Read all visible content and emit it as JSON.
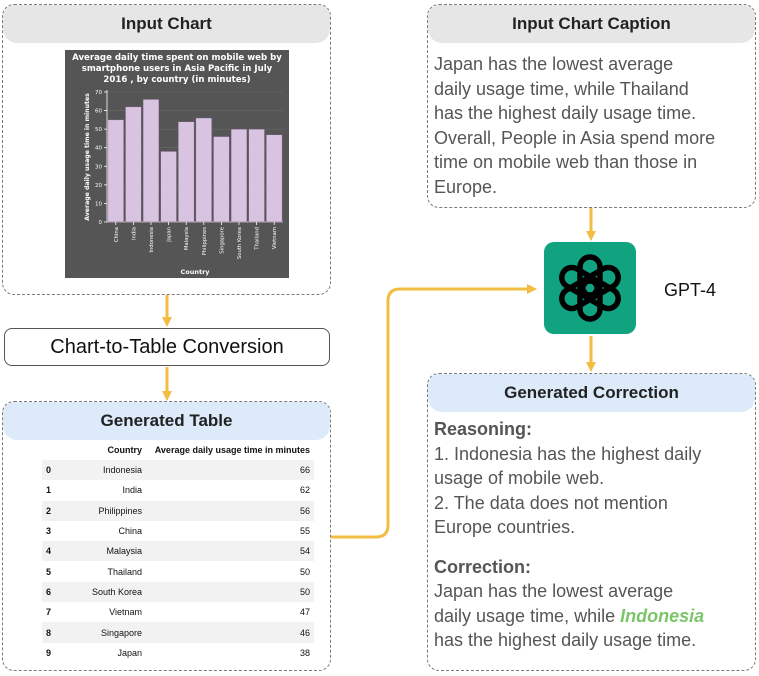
{
  "input_chart": {
    "title": "Input Chart"
  },
  "chart_data": {
    "type": "bar",
    "title": "Average daily time spent on mobile web by smartphone users in Asia Pacific in July 2016 , by country (in minutes)",
    "title_lines": [
      "Average daily time spent on mobile web by",
      "smartphone users in Asia Pacific in July",
      "2016 , by country (in minutes)"
    ],
    "xlabel": "Country",
    "ylabel": "Average daily usage time in minutes",
    "categories": [
      "China",
      "India",
      "Indonesia",
      "Japan",
      "Malaysia",
      "Philippines",
      "Singapore",
      "South Korea",
      "Thailand",
      "Vietnam"
    ],
    "values": [
      55,
      62,
      66,
      38,
      54,
      56,
      46,
      50,
      50,
      47
    ],
    "ylim": [
      0,
      70
    ],
    "yticks": [
      0,
      10,
      20,
      30,
      40,
      50,
      60,
      70
    ],
    "bar_color": "#d8c3e0",
    "background": "#555555"
  },
  "conversion": {
    "label": "Chart-to-Table Conversion"
  },
  "generated_table": {
    "title": "Generated Table",
    "headers": [
      "",
      "Country",
      "Average daily usage time in minutes"
    ],
    "rows": [
      [
        "0",
        "Indonesia",
        "66"
      ],
      [
        "1",
        "India",
        "62"
      ],
      [
        "2",
        "Philippines",
        "56"
      ],
      [
        "3",
        "China",
        "55"
      ],
      [
        "4",
        "Malaysia",
        "54"
      ],
      [
        "5",
        "Thailand",
        "50"
      ],
      [
        "6",
        "South Korea",
        "50"
      ],
      [
        "7",
        "Vietnam",
        "47"
      ],
      [
        "8",
        "Singapore",
        "46"
      ],
      [
        "9",
        "Japan",
        "38"
      ]
    ]
  },
  "caption": {
    "title": "Input Chart Caption",
    "lines": [
      "Japan has the lowest average",
      "daily usage time, while Thailand",
      "has the highest daily usage time.",
      "Overall, People in Asia spend more",
      "time on mobile web than those in",
      "Europe."
    ]
  },
  "model": {
    "label": "GPT-4",
    "icon": "openai-logo-icon"
  },
  "correction": {
    "title": "Generated Correction",
    "reasoning_label": "Reasoning:",
    "reasoning_lines": [
      "1. Indonesia has the highest daily",
      "usage of mobile web.",
      "2. The data does not mention",
      "Europe countries."
    ],
    "correction_label": "Correction:",
    "correction_line1": "Japan has the lowest average",
    "correction_line2_pre": "daily usage time, while ",
    "correction_highlight": "Indonesia",
    "correction_line3": "has the highest daily usage time."
  },
  "colors": {
    "arrow": "#f2bd42",
    "gpt_bg": "#11a37f",
    "highlight": "#7cc46a"
  }
}
